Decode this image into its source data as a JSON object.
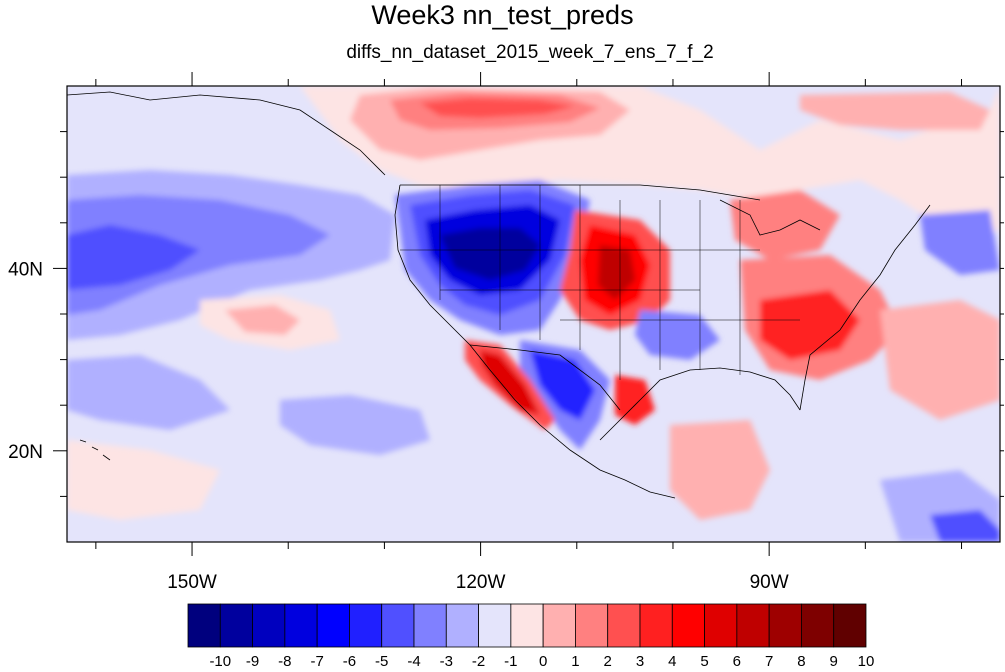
{
  "title": "Week3 nn_test_preds",
  "subtitle": "diffs_nn_dataset_2015_week_7_ens_7_f_2",
  "map": {
    "lon_range": [
      -163,
      -66
    ],
    "lat_range": [
      10,
      60
    ],
    "x_ticks": [
      {
        "value": -150,
        "label": "150W"
      },
      {
        "value": -120,
        "label": "120W"
      },
      {
        "value": -90,
        "label": "90W"
      }
    ],
    "y_ticks": [
      {
        "value": 40,
        "label": "40N"
      },
      {
        "value": 20,
        "label": "20N"
      }
    ]
  },
  "colorbar": {
    "levels": [
      "-10",
      "-9",
      "-8",
      "-7",
      "-6",
      "-5",
      "-4",
      "-3",
      "-2",
      "-1",
      "0",
      "1",
      "2",
      "3",
      "4",
      "5",
      "6",
      "7",
      "8",
      "9",
      "10"
    ],
    "colors": [
      "#00007e",
      "#00009e",
      "#0000bf",
      "#0000df",
      "#0000ff",
      "#2020ff",
      "#5050ff",
      "#8080ff",
      "#b0b0ff",
      "#e4e4fb",
      "#fde4e4",
      "#ffb0b0",
      "#ff8080",
      "#ff5050",
      "#ff2020",
      "#ff0000",
      "#df0000",
      "#bf0000",
      "#9e0000",
      "#7e0000",
      "#600000"
    ]
  }
}
